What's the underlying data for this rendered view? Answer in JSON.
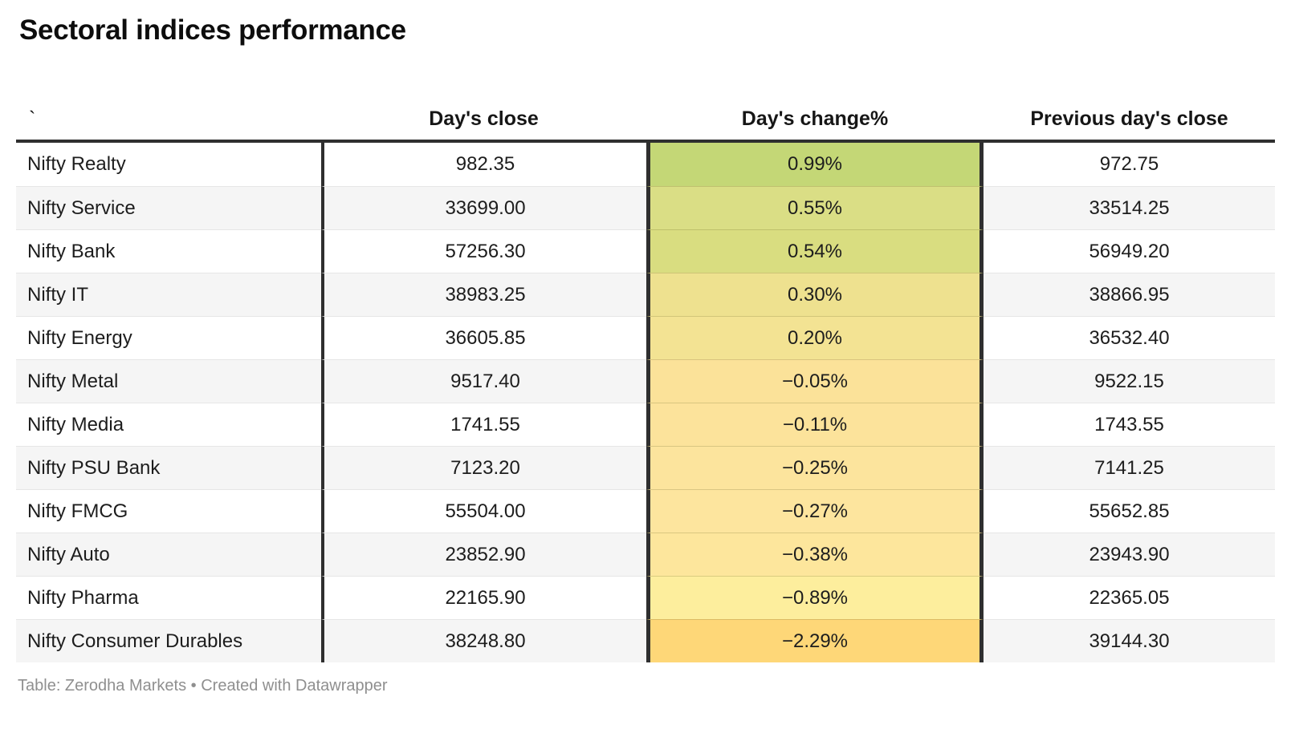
{
  "title": "Sectoral indices performance",
  "table": {
    "columns": [
      {
        "label": "`"
      },
      {
        "label": "Day's close"
      },
      {
        "label": "Day's change%"
      },
      {
        "label": "Previous day's close"
      }
    ],
    "rows": [
      {
        "name": "Nifty Realty",
        "close": "982.35",
        "change": "0.99%",
        "prev": "972.75",
        "color": "#c4d776"
      },
      {
        "name": "Nifty Service",
        "close": "33699.00",
        "change": "0.55%",
        "prev": "33514.25",
        "color": "#dade85"
      },
      {
        "name": "Nifty Bank",
        "close": "57256.30",
        "change": "0.54%",
        "prev": "56949.20",
        "color": "#d9dd80"
      },
      {
        "name": "Nifty IT",
        "close": "38983.25",
        "change": "0.30%",
        "prev": "38866.95",
        "color": "#eee18f"
      },
      {
        "name": "Nifty Energy",
        "close": "36605.85",
        "change": "0.20%",
        "prev": "36532.40",
        "color": "#f3e393"
      },
      {
        "name": "Nifty Metal",
        "close": "9517.40",
        "change": "−0.05%",
        "prev": "9522.15",
        "color": "#fbe299"
      },
      {
        "name": "Nifty Media",
        "close": "1741.55",
        "change": "−0.11%",
        "prev": "1743.55",
        "color": "#fce39b"
      },
      {
        "name": "Nifty PSU Bank",
        "close": "7123.20",
        "change": "−0.25%",
        "prev": "7141.25",
        "color": "#fce49d"
      },
      {
        "name": "Nifty FMCG",
        "close": "55504.00",
        "change": "−0.27%",
        "prev": "55652.85",
        "color": "#fde59e"
      },
      {
        "name": "Nifty Auto",
        "close": "23852.90",
        "change": "−0.38%",
        "prev": "23943.90",
        "color": "#fde69c"
      },
      {
        "name": "Nifty Pharma",
        "close": "22165.90",
        "change": "−0.89%",
        "prev": "22365.05",
        "color": "#fdee9d"
      },
      {
        "name": "Nifty Consumer Durables",
        "close": "38248.80",
        "change": "−2.29%",
        "prev": "39144.30",
        "color": "#fed778"
      }
    ]
  },
  "footer": {
    "text": "Table: Zerodha Markets • Created with Datawrapper"
  },
  "colors": {
    "table_border_dark": "#2f2f2f",
    "row_stripe": "#f5f5f5",
    "row_separator": "#e6e6e6",
    "footer_text": "#8f8f8f",
    "heatmap_positive_max": "#c4d776",
    "heatmap_negative_max": "#fed778"
  },
  "chart_data": {
    "type": "table",
    "title": "Sectoral indices performance",
    "columns": [
      "`",
      "Day's close",
      "Day's change%",
      "Previous day's close"
    ],
    "rows": [
      [
        "Nifty Realty",
        982.35,
        0.99,
        972.75
      ],
      [
        "Nifty Service",
        33699.0,
        0.55,
        33514.25
      ],
      [
        "Nifty Bank",
        57256.3,
        0.54,
        56949.2
      ],
      [
        "Nifty IT",
        38983.25,
        0.3,
        38866.95
      ],
      [
        "Nifty Energy",
        36605.85,
        0.2,
        36532.4
      ],
      [
        "Nifty Metal",
        9517.4,
        -0.05,
        9522.15
      ],
      [
        "Nifty Media",
        1741.55,
        -0.11,
        1743.55
      ],
      [
        "Nifty PSU Bank",
        7123.2,
        -0.25,
        7141.25
      ],
      [
        "Nifty FMCG",
        55504.0,
        -0.27,
        55652.85
      ],
      [
        "Nifty Auto",
        23852.9,
        -0.38,
        23943.9
      ],
      [
        "Nifty Pharma",
        22165.9,
        -0.89,
        22365.05
      ],
      [
        "Nifty Consumer Durables",
        38248.8,
        -2.29,
        39144.3
      ]
    ],
    "heatmap_column": "Day's change%",
    "heatmap_cell_colors": [
      "#c4d776",
      "#dade85",
      "#d9dd80",
      "#eee18f",
      "#f3e393",
      "#fbe299",
      "#fce39b",
      "#fce49d",
      "#fde59e",
      "#fde69c",
      "#fdee9d",
      "#fed778"
    ],
    "source": "Table: Zerodha Markets • Created with Datawrapper",
    "layout": {
      "striped_rows": true,
      "change_column_units": "percent"
    }
  }
}
